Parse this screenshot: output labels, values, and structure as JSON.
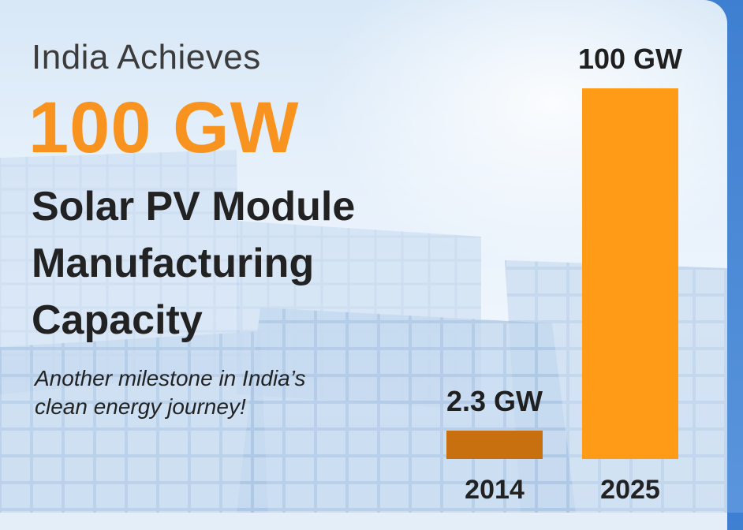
{
  "headline": {
    "line1": "India Achieves",
    "big": "100 GW",
    "sub": [
      "Solar PV Module",
      "Manufacturing",
      "Capacity"
    ]
  },
  "tagline": [
    "Another milestone in India’s",
    "clean energy journey!"
  ],
  "colors": {
    "accent": "#f7931e",
    "bar_2014": "#c8700f",
    "bar_2025": "#ff9b16",
    "text_dark": "#222222"
  },
  "chart_data": {
    "type": "bar",
    "categories": [
      "2014",
      "2025"
    ],
    "values": [
      2.3,
      100
    ],
    "value_labels": [
      "2.3 GW",
      "100 GW"
    ],
    "unit": "GW",
    "ylim": [
      0,
      100
    ],
    "grid": false,
    "title": "",
    "xlabel": "",
    "ylabel": ""
  }
}
